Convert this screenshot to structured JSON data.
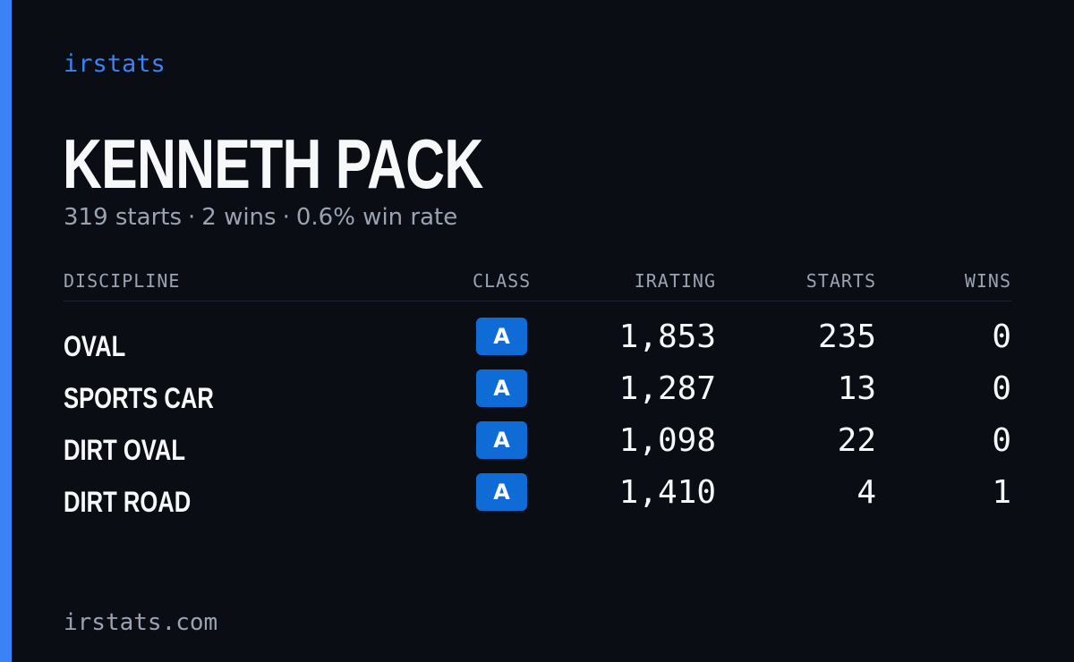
{
  "brand": "irstats",
  "driver": {
    "name": "KENNETH PACK",
    "starts_text": "319 starts",
    "wins_text": "2 wins",
    "win_rate_text": "0.6% win rate",
    "separator": "·"
  },
  "table": {
    "headers": {
      "discipline": "DISCIPLINE",
      "class": "CLASS",
      "irating": "IRATING",
      "starts": "STARTS",
      "wins": "WINS"
    },
    "rows": [
      {
        "discipline": "OVAL",
        "class": "A",
        "irating": "1,853",
        "starts": "235",
        "wins": "0"
      },
      {
        "discipline": "SPORTS CAR",
        "class": "A",
        "irating": "1,287",
        "starts": "13",
        "wins": "0"
      },
      {
        "discipline": "DIRT OVAL",
        "class": "A",
        "irating": "1,098",
        "starts": "22",
        "wins": "0"
      },
      {
        "discipline": "DIRT ROAD",
        "class": "A",
        "irating": "1,410",
        "starts": "4",
        "wins": "1"
      }
    ]
  },
  "footer": "irstats.com",
  "colors": {
    "background": "#0a0d14",
    "accent": "#3b82f6",
    "badge": "#0f6bd6",
    "muted_text": "#9aa3b2"
  }
}
